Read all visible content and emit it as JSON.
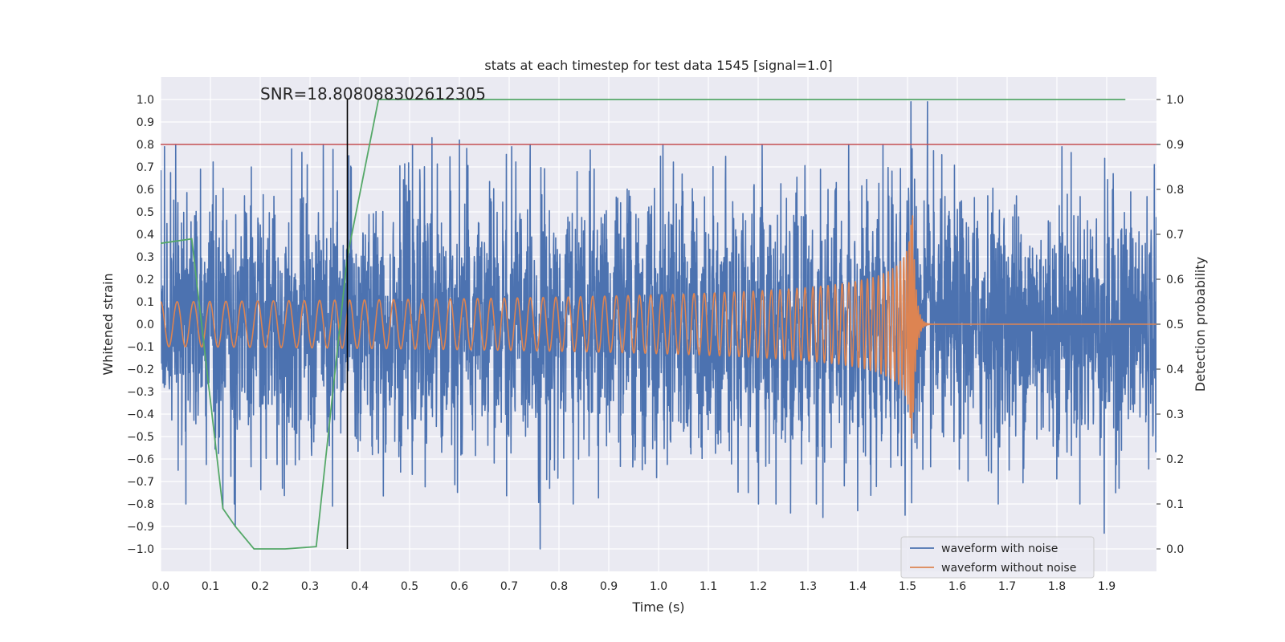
{
  "chart_data": {
    "type": "line",
    "title": "stats at each timestep for test data 1545 [signal=1.0]",
    "xlabel": "Time (s)",
    "ylabel": "Whitened strain",
    "y2label": "Detection probability",
    "xlim": [
      0.0,
      2.0
    ],
    "ylim": [
      -1.1,
      1.1
    ],
    "y2lim": [
      -0.05,
      1.05
    ],
    "xticks": [
      "0.0",
      "0.1",
      "0.2",
      "0.3",
      "0.4",
      "0.5",
      "0.6",
      "0.7",
      "0.8",
      "0.9",
      "1.0",
      "1.1",
      "1.2",
      "1.3",
      "1.4",
      "1.5",
      "1.6",
      "1.7",
      "1.8",
      "1.9"
    ],
    "yticks": [
      "1.0",
      "0.9",
      "0.8",
      "0.7",
      "0.6",
      "0.5",
      "0.4",
      "0.3",
      "0.2",
      "0.1",
      "0.0",
      "−0.1",
      "−0.2",
      "−0.3",
      "−0.4",
      "−0.5",
      "−0.6",
      "−0.7",
      "−0.8",
      "−0.9",
      "−1.0"
    ],
    "y2ticks": [
      "1.0",
      "0.9",
      "0.8",
      "0.7",
      "0.6",
      "0.5",
      "0.4",
      "0.3",
      "0.2",
      "0.1",
      "0.0"
    ],
    "grid": true,
    "legend_position": "lower-right",
    "annotation": "SNR=18.808088302612305",
    "threshold_line": {
      "y": 0.8,
      "color": "#c44e52"
    },
    "marker_line": {
      "x": 0.375,
      "y_from": -1.0,
      "y_to": 1.0,
      "color": "#000000"
    },
    "series": [
      {
        "name": "waveform with noise",
        "color": "#4c72b0",
        "sample_rate": 2048,
        "duration": 2.0,
        "std": 0.27,
        "peaks": [
          {
            "x": 0.035,
            "y": -0.65
          },
          {
            "x": 0.08,
            "y": 0.69
          },
          {
            "x": 0.125,
            "y": -0.82
          },
          {
            "x": 0.15,
            "y": -0.9
          },
          {
            "x": 0.182,
            "y": 0.7
          },
          {
            "x": 0.345,
            "y": -0.81
          },
          {
            "x": 0.378,
            "y": 0.75
          },
          {
            "x": 0.545,
            "y": 0.83
          },
          {
            "x": 0.6,
            "y": 0.82
          },
          {
            "x": 0.705,
            "y": 0.79
          },
          {
            "x": 0.762,
            "y": -1.0
          },
          {
            "x": 1.265,
            "y": -0.84
          },
          {
            "x": 1.33,
            "y": -0.86
          },
          {
            "x": 1.4,
            "y": -0.83
          },
          {
            "x": 1.495,
            "y": -0.85
          },
          {
            "x": 1.507,
            "y": 0.99
          },
          {
            "x": 1.54,
            "y": 0.99
          },
          {
            "x": 1.81,
            "y": 0.79
          },
          {
            "x": 1.895,
            "y": -0.93
          },
          {
            "x": 1.918,
            "y": -0.75
          }
        ]
      },
      {
        "name": "waveform without noise",
        "color": "#dd8452",
        "f0": 30,
        "tc": 1.51,
        "base_amplitude": 0.1
      }
    ],
    "probability": {
      "color": "#55a868",
      "x": [
        0.0,
        0.0625,
        0.125,
        0.15,
        0.1875,
        0.25,
        0.3125,
        0.375,
        0.4375,
        0.5,
        1.9375
      ],
      "y": [
        0.68,
        0.69,
        0.09,
        0.05,
        0.0,
        0.0,
        0.005,
        0.65,
        1.0,
        1.0,
        1.0
      ]
    }
  }
}
